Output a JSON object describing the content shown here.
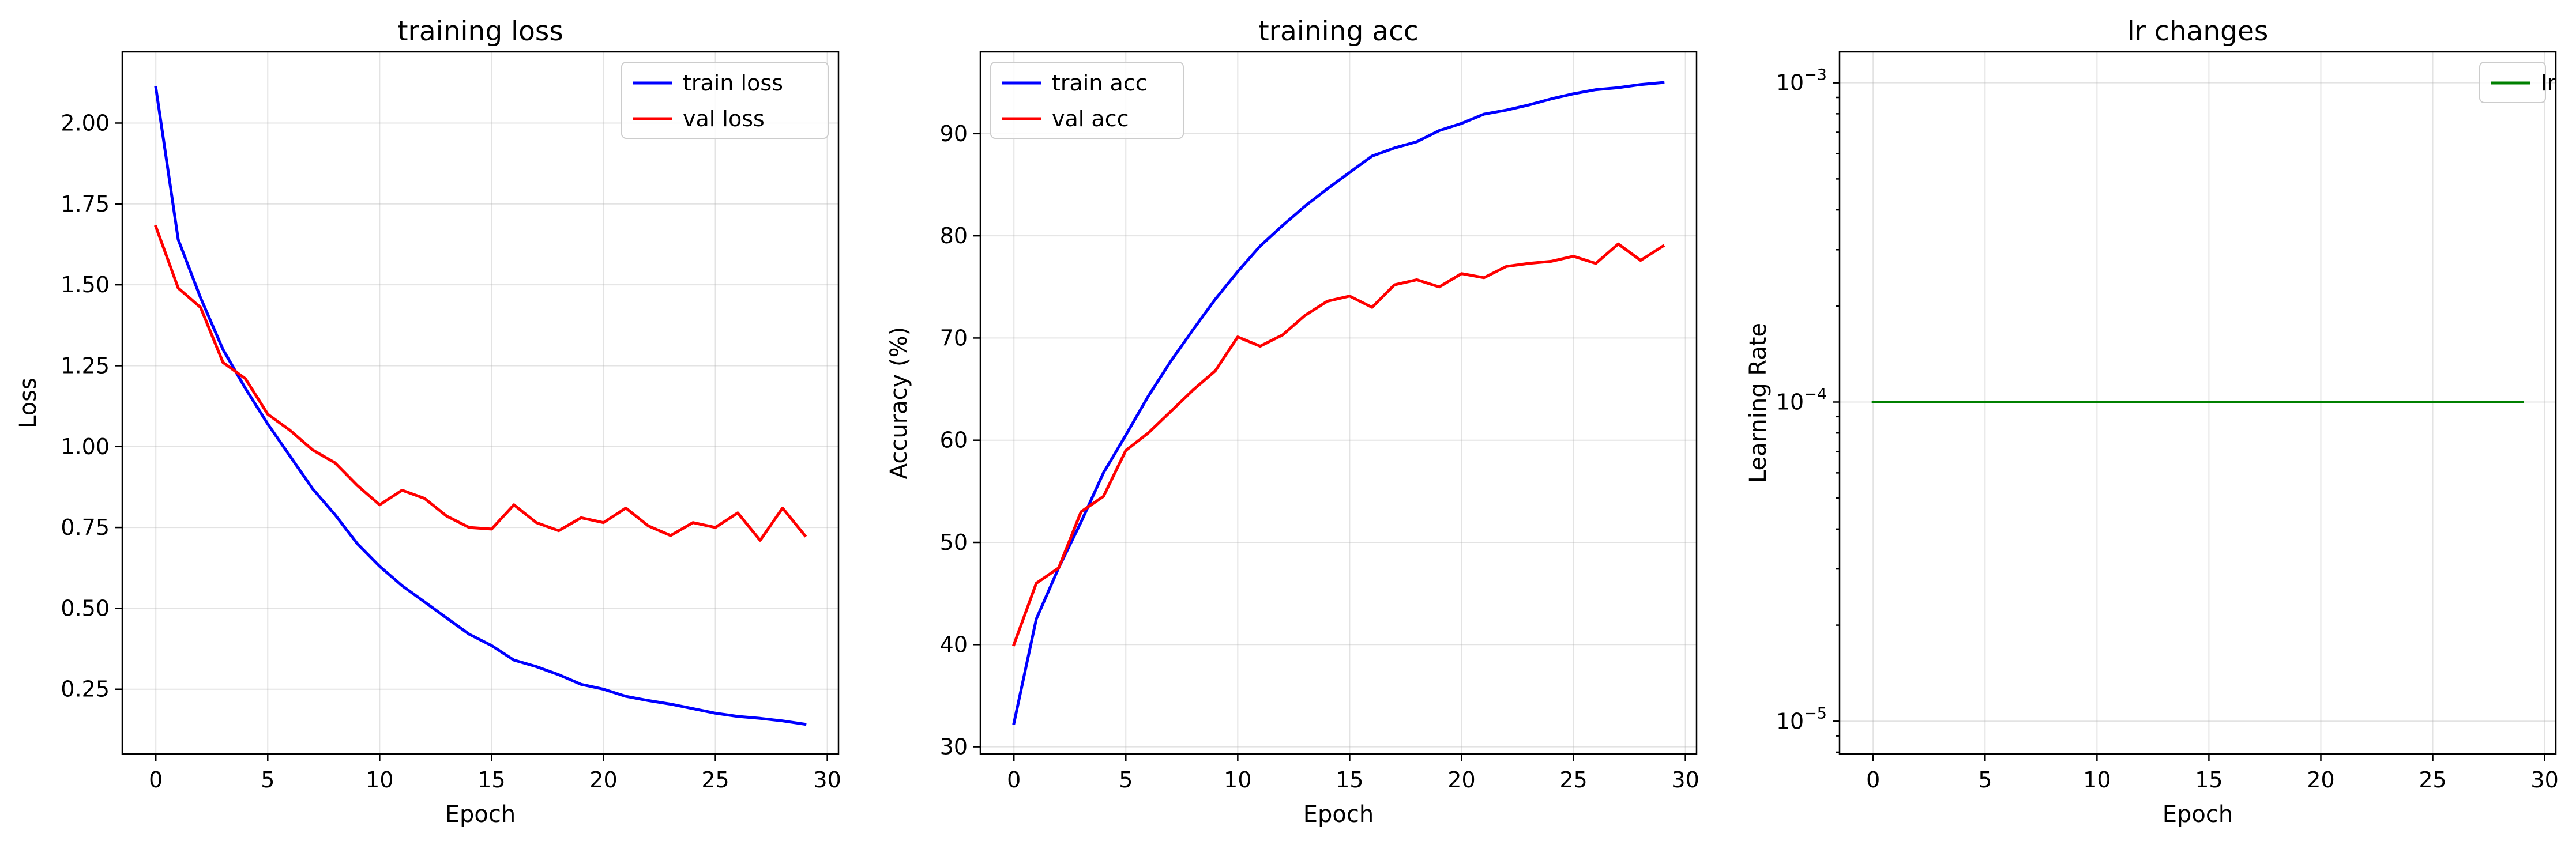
{
  "colors": {
    "train": "#0000ff",
    "val": "#ff0000",
    "lr": "#008000",
    "grid": "#b0b0b0"
  },
  "chart_data": [
    {
      "type": "line",
      "title": "training loss",
      "xlabel": "Epoch",
      "ylabel": "Loss",
      "xlim": [
        -1.5,
        30.5
      ],
      "ylim": [
        0.05,
        2.22
      ],
      "xticks": [
        0,
        5,
        10,
        15,
        20,
        25,
        30
      ],
      "xtick_labels": [
        "0",
        "5",
        "10",
        "15",
        "20",
        "25",
        "30"
      ],
      "yticks": [
        0.25,
        0.5,
        0.75,
        1.0,
        1.25,
        1.5,
        1.75,
        2.0
      ],
      "ytick_labels": [
        "0.25",
        "0.50",
        "0.75",
        "1.00",
        "1.25",
        "1.50",
        "1.75",
        "2.00"
      ],
      "log_y": false,
      "grid": true,
      "legend": "upper right",
      "x": [
        0,
        1,
        2,
        3,
        4,
        5,
        6,
        7,
        8,
        9,
        10,
        11,
        12,
        13,
        14,
        15,
        16,
        17,
        18,
        19,
        20,
        21,
        22,
        23,
        24,
        25,
        26,
        27,
        28,
        29
      ],
      "series": [
        {
          "name": "train loss",
          "color": "#0000ff",
          "values": [
            2.11,
            1.64,
            1.46,
            1.3,
            1.18,
            1.07,
            0.97,
            0.87,
            0.79,
            0.7,
            0.63,
            0.57,
            0.52,
            0.47,
            0.42,
            0.385,
            0.34,
            0.32,
            0.295,
            0.265,
            0.25,
            0.228,
            0.215,
            0.204,
            0.19,
            0.176,
            0.166,
            0.16,
            0.152,
            0.142
          ]
        },
        {
          "name": "val loss",
          "color": "#ff0000",
          "values": [
            1.68,
            1.49,
            1.43,
            1.26,
            1.21,
            1.1,
            1.05,
            0.99,
            0.95,
            0.88,
            0.82,
            0.865,
            0.84,
            0.785,
            0.75,
            0.745,
            0.82,
            0.765,
            0.74,
            0.78,
            0.765,
            0.81,
            0.755,
            0.725,
            0.765,
            0.75,
            0.795,
            0.71,
            0.81,
            0.725
          ]
        }
      ]
    },
    {
      "type": "line",
      "title": "training acc",
      "xlabel": "Epoch",
      "ylabel": "Accuracy (%)",
      "xlim": [
        -1.5,
        30.5
      ],
      "ylim": [
        29.3,
        98.0
      ],
      "xticks": [
        0,
        5,
        10,
        15,
        20,
        25,
        30
      ],
      "xtick_labels": [
        "0",
        "5",
        "10",
        "15",
        "20",
        "25",
        "30"
      ],
      "yticks": [
        30,
        40,
        50,
        60,
        70,
        80,
        90
      ],
      "ytick_labels": [
        "30",
        "40",
        "50",
        "60",
        "70",
        "80",
        "90"
      ],
      "log_y": false,
      "grid": true,
      "legend": "upper left",
      "x": [
        0,
        1,
        2,
        3,
        4,
        5,
        6,
        7,
        8,
        9,
        10,
        11,
        12,
        13,
        14,
        15,
        16,
        17,
        18,
        19,
        20,
        21,
        22,
        23,
        24,
        25,
        26,
        27,
        28,
        29
      ],
      "series": [
        {
          "name": "train acc",
          "color": "#0000ff",
          "values": [
            32.3,
            42.5,
            47.5,
            52.0,
            56.8,
            60.5,
            64.3,
            67.7,
            70.8,
            73.8,
            76.5,
            79.0,
            81.0,
            82.9,
            84.6,
            86.2,
            87.8,
            88.6,
            89.2,
            90.3,
            91.0,
            91.9,
            92.3,
            92.8,
            93.4,
            93.9,
            94.3,
            94.5,
            94.8,
            95.0
          ]
        },
        {
          "name": "val acc",
          "color": "#ff0000",
          "values": [
            40.0,
            46.0,
            47.5,
            53.0,
            54.5,
            59.0,
            60.7,
            62.8,
            64.9,
            66.8,
            70.1,
            69.2,
            70.3,
            72.2,
            73.6,
            74.1,
            73.0,
            75.2,
            75.7,
            75.0,
            76.3,
            75.9,
            77.0,
            77.3,
            77.5,
            78.0,
            77.3,
            79.2,
            77.6,
            79.0
          ]
        }
      ]
    },
    {
      "type": "line",
      "title": "lr changes",
      "xlabel": "Epoch",
      "ylabel": "Learning Rate",
      "xlim": [
        -1.5,
        30.5
      ],
      "ylim": [
        7.9e-06,
        0.00125
      ],
      "xticks": [
        0,
        5,
        10,
        15,
        20,
        25,
        30
      ],
      "xtick_labels": [
        "0",
        "5",
        "10",
        "15",
        "20",
        "25",
        "30"
      ],
      "yticks": [
        1e-05,
        0.0001,
        0.001
      ],
      "ytick_labels": [
        [
          "10",
          "−5"
        ],
        [
          "10",
          "−4"
        ],
        [
          "10",
          "−3"
        ]
      ],
      "log_y": true,
      "grid": true,
      "legend": "upper right",
      "x": [
        0,
        1,
        2,
        3,
        4,
        5,
        6,
        7,
        8,
        9,
        10,
        11,
        12,
        13,
        14,
        15,
        16,
        17,
        18,
        19,
        20,
        21,
        22,
        23,
        24,
        25,
        26,
        27,
        28,
        29
      ],
      "series": [
        {
          "name": "lr",
          "color": "#008000",
          "values": [
            0.0001,
            0.0001,
            0.0001,
            0.0001,
            0.0001,
            0.0001,
            0.0001,
            0.0001,
            0.0001,
            0.0001,
            0.0001,
            0.0001,
            0.0001,
            0.0001,
            0.0001,
            0.0001,
            0.0001,
            0.0001,
            0.0001,
            0.0001,
            0.0001,
            0.0001,
            0.0001,
            0.0001,
            0.0001,
            0.0001,
            0.0001,
            0.0001,
            0.0001,
            0.0001
          ]
        }
      ]
    }
  ]
}
